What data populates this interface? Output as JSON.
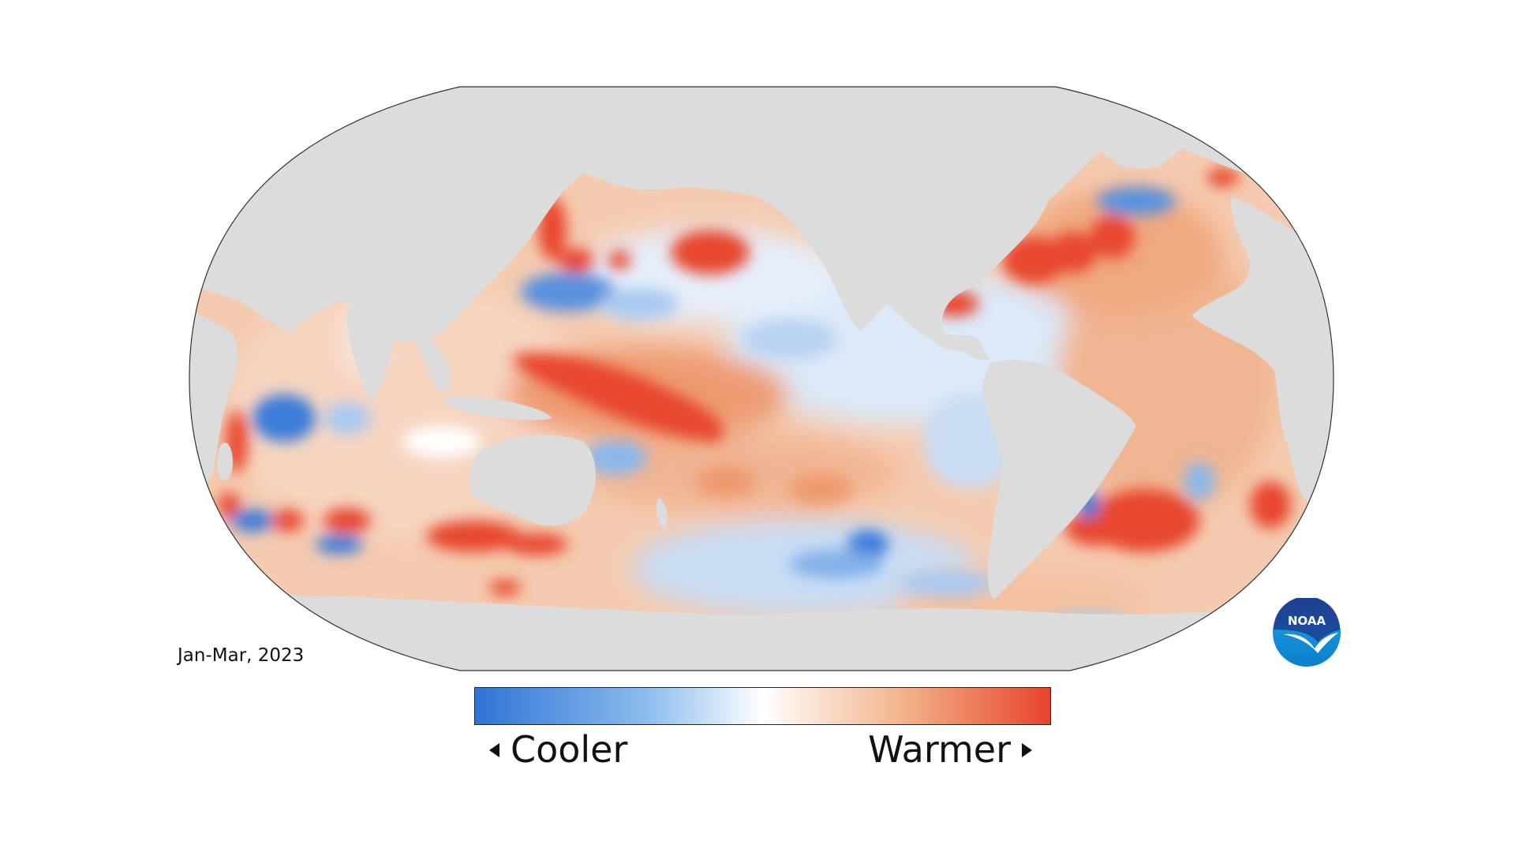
{
  "period_label": "Jan-Mar, 2023",
  "legend": {
    "low_label": "Cooler",
    "high_label": "Warmer",
    "gradient_colors": [
      "#2f73d6",
      "#8cbdee",
      "#ffffff",
      "#f2b187",
      "#e8422c"
    ]
  },
  "colors": {
    "land": "#dcdcdc",
    "ocean_base": "#f4cbb0",
    "warm_strong": "#e8472f",
    "warm_mid": "#ee9a70",
    "neutral": "#ffffff",
    "cool_mid": "#b5d2f2",
    "cool_strong": "#3a7bd9"
  },
  "logo": {
    "icon": "noaa-logo-icon",
    "text": "NOAA"
  }
}
